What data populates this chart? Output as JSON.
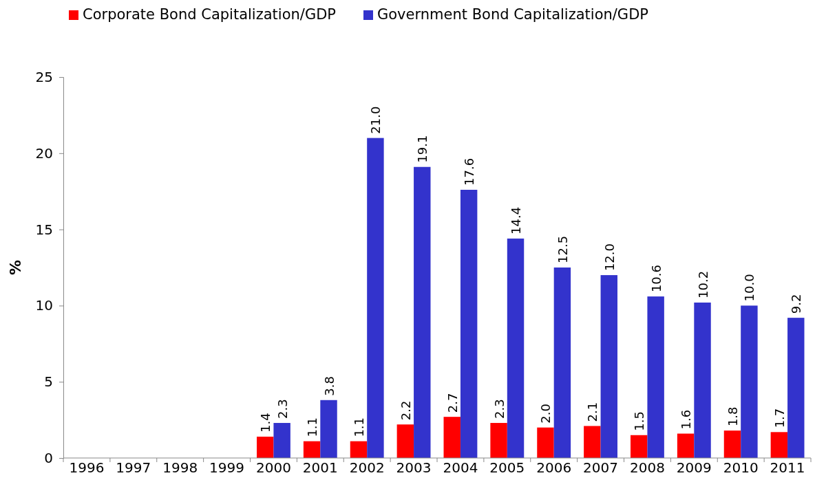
{
  "chart_data": {
    "type": "bar",
    "ylabel": "%",
    "categories": [
      "1996",
      "1997",
      "1998",
      "1999",
      "2000",
      "2001",
      "2002",
      "2003",
      "2004",
      "2005",
      "2006",
      "2007",
      "2008",
      "2009",
      "2010",
      "2011"
    ],
    "series": [
      {
        "name": "Corporate Bond Capitalization/GDP",
        "color": "#ff0000",
        "values": [
          null,
          null,
          null,
          null,
          1.4,
          1.1,
          1.1,
          2.2,
          2.7,
          2.3,
          2.0,
          2.1,
          1.5,
          1.6,
          1.8,
          1.7
        ],
        "value_labels": [
          null,
          null,
          null,
          null,
          "1.4",
          "1.1",
          "1.1",
          "2.2",
          "2.7",
          "2.3",
          "2.0",
          "2.1",
          "1.5",
          "1.6",
          "1.8",
          "1.7"
        ]
      },
      {
        "name": "Government Bond Capitalization/GDP",
        "color": "#3333cc",
        "values": [
          null,
          null,
          null,
          null,
          2.3,
          3.8,
          21.0,
          19.1,
          17.6,
          14.4,
          12.5,
          12.0,
          10.6,
          10.2,
          10.0,
          9.2
        ],
        "value_labels": [
          null,
          null,
          null,
          null,
          "2.3",
          "3.8",
          "21.0",
          "19.1",
          "17.6",
          "14.4",
          "12.5",
          "12.0",
          "10.6",
          "10.2",
          "10.0",
          "9.2"
        ]
      }
    ],
    "ylim": [
      0,
      25
    ],
    "yticks": [
      0,
      5,
      10,
      15,
      20,
      25
    ],
    "grid": false,
    "legend": "top"
  }
}
